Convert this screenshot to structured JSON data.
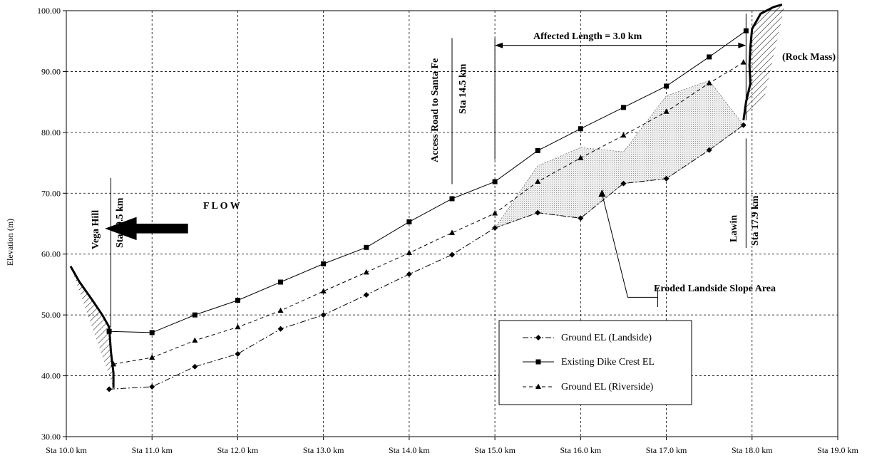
{
  "chart_data": {
    "type": "line",
    "title": "",
    "xlabel": "",
    "ylabel": "Elevation (m)",
    "xlim": [
      10.0,
      19.0
    ],
    "ylim": [
      30,
      100
    ],
    "grid": true,
    "legend_position": "lower-right",
    "x_ticks": [
      10.0,
      11.0,
      12.0,
      13.0,
      14.0,
      15.0,
      16.0,
      17.0,
      18.0,
      19.0
    ],
    "x_tick_labels": [
      "Sta 10.0 km",
      "Sta 11.0 km",
      "Sta 12.0 km",
      "Sta 13.0 km",
      "Sta 14.0 km",
      "Sta 15.0 km",
      "Sta 16.0 km",
      "Sta 17.0 km",
      "Sta 18.0 km",
      "Sta 19.0 km"
    ],
    "y_ticks": [
      30,
      40,
      50,
      60,
      70,
      80,
      90,
      100
    ],
    "y_tick_labels": [
      "30.00",
      "40.00",
      "50.00",
      "60.00",
      "70.00",
      "80.00",
      "90.00",
      "100.00"
    ],
    "series": [
      {
        "name": "Ground EL (Landside)",
        "marker": "diamond",
        "dash": "dashdot",
        "x": [
          10.5,
          11.0,
          11.5,
          12.0,
          12.5,
          13.0,
          13.5,
          14.0,
          14.5,
          15.0,
          15.5,
          16.0,
          16.5,
          17.0,
          17.5,
          17.9
        ],
        "y": [
          37.8,
          38.2,
          41.5,
          43.6,
          47.7,
          50.0,
          53.3,
          56.7,
          59.9,
          64.3,
          66.8,
          65.9,
          71.6,
          72.4,
          77.1,
          81.2
        ]
      },
      {
        "name": "Existing Dike Crest EL",
        "marker": "square",
        "dash": "solid",
        "x": [
          10.5,
          11.0,
          11.5,
          12.0,
          12.5,
          13.0,
          13.5,
          14.0,
          14.5,
          15.0,
          15.5,
          16.0,
          16.5,
          17.0,
          17.5,
          17.93
        ],
        "y": [
          47.3,
          47.1,
          50.0,
          52.4,
          55.4,
          58.4,
          61.1,
          65.3,
          69.1,
          71.9,
          77.0,
          80.6,
          84.1,
          87.6,
          92.4,
          96.7
        ]
      },
      {
        "name": "Ground EL (Riverside)",
        "marker": "triangle",
        "dash": "dashed",
        "x": [
          10.55,
          11.0,
          11.5,
          12.0,
          12.5,
          13.0,
          13.5,
          14.0,
          14.5,
          15.0,
          15.5,
          16.0,
          16.5,
          17.0,
          17.5,
          17.9
        ],
        "y": [
          41.9,
          43.0,
          45.8,
          48.0,
          50.7,
          53.9,
          57.0,
          60.2,
          63.5,
          66.7,
          71.9,
          75.8,
          79.5,
          83.4,
          88.1,
          91.5
        ]
      }
    ],
    "annotations": {
      "vega_hill": "Vega Hill",
      "sta_10_5": "Sta 10.5 km",
      "flow": "F L O W",
      "access_road": "Access Road to Santa Fe",
      "sta_14_5": "Sta 14.5 km",
      "affected_length": "Affected Length = 3.0 km",
      "rock_mass": "(Rock Mass)",
      "lawin": "Lawin",
      "sta_17_9": "Sta 17.9 km",
      "eroded": "Eroded Landside Slope Area"
    },
    "eroded_area": {
      "x": [
        15.0,
        15.5,
        16.0,
        16.5,
        17.0,
        17.5,
        17.9,
        17.5,
        17.0,
        16.5,
        16.0,
        15.5,
        15.0
      ],
      "y": [
        64.3,
        74.5,
        77.5,
        76.8,
        86.0,
        88.5,
        81.2,
        77.1,
        72.4,
        71.6,
        65.9,
        66.8,
        64.3
      ]
    },
    "hill_left": {
      "edge_x": [
        10.05,
        10.15,
        10.3,
        10.42,
        10.5,
        10.52,
        10.55,
        10.55
      ],
      "edge_y": [
        58.0,
        55.5,
        52.5,
        50.0,
        48.0,
        44.0,
        40.5,
        38.0
      ]
    },
    "rock_right": {
      "edge_x": [
        18.35,
        18.25,
        18.1,
        18.0,
        17.98,
        17.97,
        17.98,
        17.93,
        17.9
      ],
      "edge_y": [
        101.0,
        100.6,
        99.5,
        97.0,
        94.0,
        91.0,
        88.0,
        85.0,
        82.0
      ]
    }
  }
}
